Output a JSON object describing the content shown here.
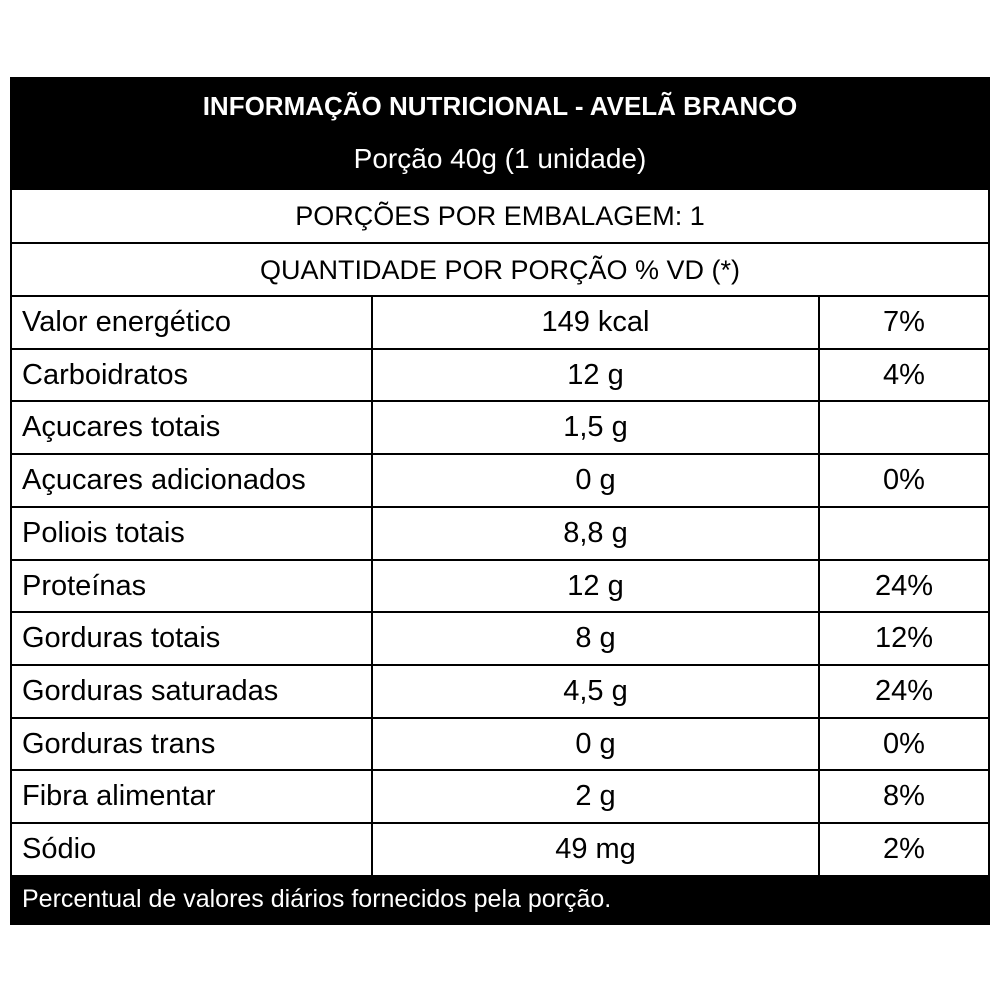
{
  "header": {
    "title": "INFORMAÇÃO NUTRICIONAL - AVELÃ BRANCO",
    "subtitle": "Porção 40g (1 unidade)"
  },
  "servings": "PORÇÕES POR EMBALAGEM: 1",
  "quantity_header": "QUANTIDADE POR PORÇÃO % VD (*)",
  "table": {
    "rows": [
      {
        "name": "Valor energético",
        "amount": "149 kcal",
        "vd": "7%"
      },
      {
        "name": "Carboidratos",
        "amount": "12 g",
        "vd": "4%"
      },
      {
        "name": "Açucares totais",
        "amount": "1,5 g"
      },
      {
        "name": "Açucares adicionados",
        "amount": "0 g",
        "vd": "0%"
      },
      {
        "name": "Poliois totais",
        "amount": "8,8 g"
      },
      {
        "name": "Proteínas",
        "amount": "12 g",
        "vd": "24%"
      },
      {
        "name": "Gorduras totais",
        "amount": "8 g",
        "vd": "12%"
      },
      {
        "name": "Gorduras saturadas",
        "amount": "4,5 g",
        "vd": "24%"
      },
      {
        "name": "Gorduras trans",
        "amount": "0 g",
        "vd": "0%"
      },
      {
        "name": "Fibra alimentar",
        "amount": "2 g",
        "vd": "8%"
      },
      {
        "name": "Sódio",
        "amount": "49 mg",
        "vd": "2%"
      }
    ]
  },
  "footer": "Percentual de valores diários fornecidos pela porção."
}
